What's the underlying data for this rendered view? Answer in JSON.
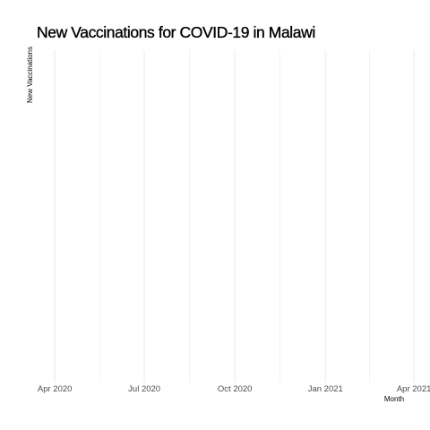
{
  "chart_data": {
    "type": "line",
    "title": "New Vaccinations for COVID-19 in Malawi",
    "xlabel": "Month",
    "ylabel": "New Vaccinations",
    "x_ticks": [
      "Apr 2020",
      "Jul 2020",
      "Oct 2020",
      "Jan 2021",
      "Apr 2021"
    ],
    "x_tick_dates": [
      "2020-04-01",
      "2020-07-01",
      "2020-10-01",
      "2021-01-01",
      "2021-04-01"
    ],
    "xlim": [
      "2020-03-10",
      "2021-04-10"
    ],
    "series": [],
    "grid": true,
    "colors": {
      "gridline": "#ebebeb",
      "tick_text": "#4d4d4d",
      "text": "#000000"
    }
  }
}
